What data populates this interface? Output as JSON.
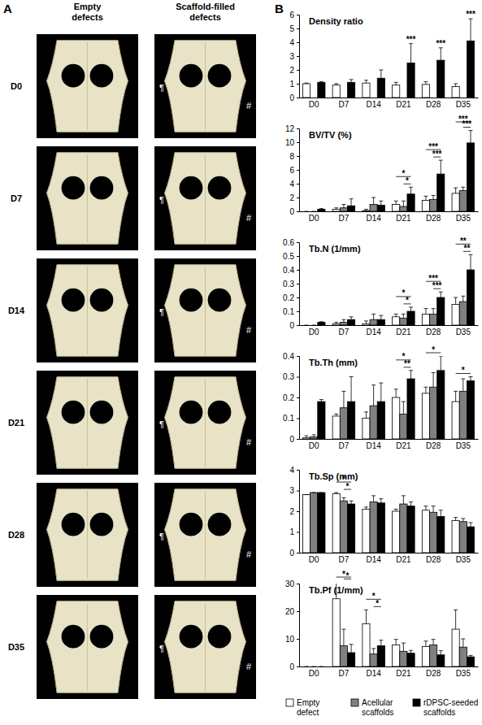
{
  "panel_labels": [
    "A",
    "B"
  ],
  "panel_a": {
    "columns": [
      [
        "Empty",
        "defects"
      ],
      [
        "Scaffold-filled",
        "defects"
      ]
    ],
    "rows": [
      "D0",
      "D7",
      "D14",
      "D21",
      "D28",
      "D35"
    ],
    "symbols": [
      "¶",
      "#"
    ]
  },
  "chart_data": [
    {
      "type": "bar",
      "title": "Density ratio",
      "categories": [
        "D0",
        "D7",
        "D14",
        "D21",
        "D28",
        "D35"
      ],
      "ylim": [
        0,
        6
      ],
      "yticks": [
        0,
        1,
        2,
        3,
        4,
        5,
        6
      ],
      "series": [
        {
          "name": "Empty defect",
          "color": "#ffffff",
          "values": [
            1.0,
            0.9,
            1.05,
            0.9,
            0.95,
            0.8
          ],
          "errors": [
            0.05,
            0.1,
            0.2,
            0.2,
            0.2,
            0.2
          ]
        },
        {
          "name": "Acellular scaffolds",
          "color": "#808080",
          "values": [
            null,
            null,
            null,
            null,
            null,
            null
          ],
          "errors": [
            null,
            null,
            null,
            null,
            null,
            null
          ]
        },
        {
          "name": "rDPSC-seeded scaffolds",
          "color": "#000000",
          "values": [
            1.1,
            1.1,
            1.4,
            2.5,
            2.7,
            4.1
          ],
          "errors": [
            0.05,
            0.2,
            0.6,
            1.4,
            0.9,
            1.6
          ]
        }
      ],
      "annotations": [
        {
          "category": "D21",
          "text": "***",
          "between": [
            2
          ]
        },
        {
          "category": "D28",
          "text": "***",
          "between": [
            2
          ]
        },
        {
          "category": "D35",
          "text": "***",
          "between": [
            2
          ]
        }
      ]
    },
    {
      "type": "bar",
      "title": "BV/TV (%)",
      "categories": [
        "D0",
        "D7",
        "D14",
        "D21",
        "D28",
        "D35"
      ],
      "ylim": [
        0,
        12
      ],
      "yticks": [
        0,
        2,
        4,
        6,
        8,
        10,
        12
      ],
      "series": [
        {
          "name": "Empty defect",
          "color": "#ffffff",
          "values": [
            0,
            0.3,
            0.1,
            1.0,
            1.6,
            2.6
          ],
          "errors": [
            0,
            0.2,
            0.2,
            0.5,
            0.6,
            0.8
          ]
        },
        {
          "name": "Acellular scaffolds",
          "color": "#808080",
          "values": [
            0,
            0.5,
            1.0,
            0.7,
            1.7,
            3.0
          ],
          "errors": [
            0,
            0.5,
            1.0,
            0.8,
            0.6,
            0.5
          ]
        },
        {
          "name": "rDPSC-seeded scaffolds",
          "color": "#000000",
          "values": [
            0.3,
            0.8,
            0.9,
            2.5,
            5.4,
            9.9
          ],
          "errors": [
            0.1,
            1.0,
            0.6,
            1.0,
            2.0,
            1.8
          ]
        }
      ],
      "annotations": [
        {
          "category": "D21",
          "text": "*",
          "between": [
            1,
            2
          ]
        },
        {
          "category": "D21",
          "text": "*",
          "between": [
            0,
            2
          ]
        },
        {
          "category": "D28",
          "text": "***",
          "between": [
            1,
            2
          ]
        },
        {
          "category": "D28",
          "text": "***",
          "between": [
            0,
            2
          ]
        },
        {
          "category": "D35",
          "text": "***",
          "between": [
            1,
            2
          ]
        },
        {
          "category": "D35",
          "text": "***",
          "between": [
            0,
            2
          ]
        }
      ]
    },
    {
      "type": "bar",
      "title": "Tb.N (1/mm)",
      "categories": [
        "D0",
        "D7",
        "D14",
        "D21",
        "D28",
        "D35"
      ],
      "ylim": [
        0,
        0.6
      ],
      "yticks": [
        0,
        0.1,
        0.2,
        0.3,
        0.4,
        0.5,
        0.6
      ],
      "series": [
        {
          "name": "Empty defect",
          "color": "#ffffff",
          "values": [
            0,
            0.01,
            0.01,
            0.06,
            0.08,
            0.15
          ],
          "errors": [
            0,
            0.01,
            0.02,
            0.02,
            0.04,
            0.05
          ]
        },
        {
          "name": "Acellular scaffolds",
          "color": "#808080",
          "values": [
            0,
            0.02,
            0.04,
            0.05,
            0.08,
            0.17
          ],
          "errors": [
            0,
            0.02,
            0.04,
            0.03,
            0.04,
            0.04
          ]
        },
        {
          "name": "rDPSC-seeded scaffolds",
          "color": "#000000",
          "values": [
            0.02,
            0.04,
            0.04,
            0.1,
            0.2,
            0.4
          ],
          "errors": [
            0.005,
            0.02,
            0.03,
            0.03,
            0.04,
            0.11
          ]
        }
      ],
      "annotations": [
        {
          "category": "D21",
          "text": "*",
          "between": [
            1,
            2
          ]
        },
        {
          "category": "D21",
          "text": "*",
          "between": [
            0,
            2
          ]
        },
        {
          "category": "D28",
          "text": "***",
          "between": [
            1,
            2
          ]
        },
        {
          "category": "D28",
          "text": "***",
          "between": [
            0,
            2
          ]
        },
        {
          "category": "D35",
          "text": "**",
          "between": [
            1,
            2
          ]
        },
        {
          "category": "D35",
          "text": "**",
          "between": [
            0,
            2
          ]
        }
      ]
    },
    {
      "type": "bar",
      "title": "Tb.Th (mm)",
      "categories": [
        "D0",
        "D7",
        "D14",
        "D21",
        "D28",
        "D35"
      ],
      "ylim": [
        0,
        0.4
      ],
      "yticks": [
        0,
        0.1,
        0.2,
        0.3,
        0.4
      ],
      "series": [
        {
          "name": "Empty defect",
          "color": "#ffffff",
          "values": [
            0.005,
            0.11,
            0.1,
            0.2,
            0.22,
            0.18
          ],
          "errors": [
            0.01,
            0.01,
            0.03,
            0.04,
            0.03,
            0.05
          ]
        },
        {
          "name": "Acellular scaffolds",
          "color": "#808080",
          "values": [
            0.01,
            0.15,
            0.16,
            0.12,
            0.25,
            0.23
          ],
          "errors": [
            0.01,
            0.08,
            0.1,
            0.06,
            0.07,
            0.06
          ]
        },
        {
          "name": "rDPSC-seeded scaffolds",
          "color": "#000000",
          "values": [
            0.18,
            0.18,
            0.18,
            0.29,
            0.33,
            0.28
          ],
          "errors": [
            0.01,
            0.12,
            0.09,
            0.04,
            0.07,
            0.02
          ]
        }
      ],
      "annotations": [
        {
          "category": "D21",
          "text": "**",
          "between": [
            1,
            2
          ]
        },
        {
          "category": "D21",
          "text": "*",
          "between": [
            0,
            2
          ]
        },
        {
          "category": "D28",
          "text": "*",
          "between": [
            0,
            2
          ]
        },
        {
          "category": "D35",
          "text": "*",
          "between": [
            0,
            2
          ]
        }
      ]
    },
    {
      "type": "bar",
      "title": "Tb.Sp (mm)",
      "categories": [
        "D0",
        "D7",
        "D14",
        "D21",
        "D28",
        "D35"
      ],
      "ylim": [
        0,
        4
      ],
      "yticks": [
        0,
        1,
        2,
        3,
        4
      ],
      "series": [
        {
          "name": "Empty defect",
          "color": "#ffffff",
          "values": [
            2.8,
            2.85,
            2.1,
            2.0,
            2.05,
            1.55
          ],
          "errors": [
            0,
            0.05,
            0.1,
            0.1,
            0.2,
            0.15
          ]
        },
        {
          "name": "Acellular scaffolds",
          "color": "#808080",
          "values": [
            2.9,
            2.5,
            2.45,
            2.35,
            1.95,
            1.5
          ],
          "errors": [
            0,
            0.15,
            0.3,
            0.4,
            0.3,
            0.15
          ]
        },
        {
          "name": "rDPSC-seeded scaffolds",
          "color": "#000000",
          "values": [
            2.9,
            2.35,
            2.4,
            2.25,
            1.75,
            1.25
          ],
          "errors": [
            0,
            0.15,
            0.2,
            0.2,
            0.3,
            0.2
          ]
        }
      ],
      "annotations": [
        {
          "category": "D7",
          "text": "*",
          "between": [
            1,
            2
          ]
        },
        {
          "category": "D7",
          "text": "*",
          "between": [
            0,
            2
          ]
        }
      ]
    },
    {
      "type": "bar",
      "title": "Tb.Pf (1/mm)",
      "categories": [
        "D0",
        "D7",
        "D14",
        "D21",
        "D28",
        "D35"
      ],
      "ylim": [
        0,
        30
      ],
      "yticks": [
        0,
        10,
        20,
        30
      ],
      "legend": "bottom",
      "series": [
        {
          "name": "Empty defect",
          "color": "#ffffff",
          "values": [
            0,
            24.5,
            15.5,
            7.8,
            7.2,
            13.5
          ],
          "errors": [
            0,
            6,
            5,
            2,
            2,
            7
          ]
        },
        {
          "name": "Acellular scaffolds",
          "color": "#808080",
          "values": [
            0,
            7.5,
            4.5,
            5.5,
            7.8,
            7
          ],
          "errors": [
            0,
            6,
            2,
            3,
            2,
            3
          ]
        },
        {
          "name": "rDPSC-seeded scaffolds",
          "color": "#000000",
          "values": [
            0,
            5,
            7.5,
            4.8,
            4.2,
            3.5
          ],
          "errors": [
            0,
            3,
            2,
            1,
            1.5,
            0.5
          ]
        }
      ],
      "annotations": [
        {
          "category": "D7",
          "text": "*",
          "between": [
            1,
            2
          ]
        },
        {
          "category": "D7",
          "text": "*",
          "between": [
            0,
            2
          ]
        },
        {
          "category": "D14",
          "text": "*",
          "between": [
            1,
            2
          ]
        },
        {
          "category": "D14",
          "text": "*",
          "between": [
            0,
            2
          ]
        }
      ]
    }
  ]
}
